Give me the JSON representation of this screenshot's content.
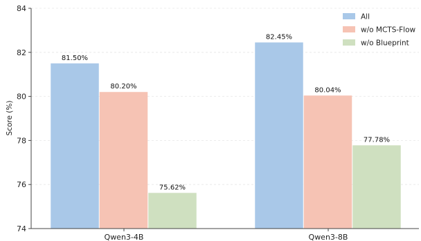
{
  "chart_data": {
    "type": "bar",
    "title": "",
    "xlabel": "",
    "ylabel": "Score (%)",
    "ylim": [
      74,
      84
    ],
    "yticks": [
      74,
      76,
      78,
      80,
      82,
      84
    ],
    "categories": [
      "Qwen3-4B",
      "Qwen3-8B"
    ],
    "series": [
      {
        "name": "All",
        "values": [
          81.5,
          82.45
        ],
        "labels": [
          "81.50%",
          "82.45%"
        ],
        "color": "#a9c8e8"
      },
      {
        "name": "w/o MCTS-Flow",
        "values": [
          80.2,
          80.04
        ],
        "labels": [
          "80.20%",
          "80.04%"
        ],
        "color": "#f6c3b4"
      },
      {
        "name": "w/o Blueprint",
        "values": [
          75.62,
          77.78
        ],
        "labels": [
          "75.62%",
          "77.78%"
        ],
        "color": "#cfe0c0"
      }
    ],
    "grid": true,
    "legend": "top-right"
  }
}
